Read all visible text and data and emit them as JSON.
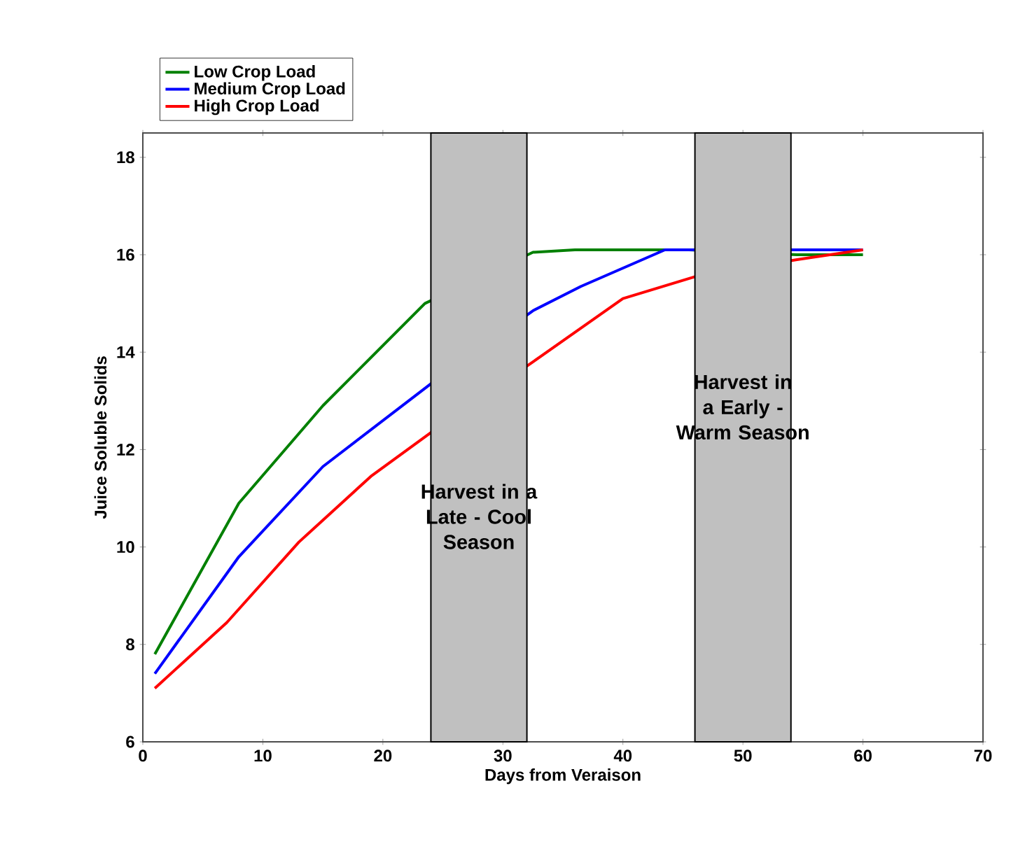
{
  "chart_data": {
    "type": "line",
    "xlabel": "Days from Veraison",
    "ylabel": "Juice Soluble Solids",
    "xlim": [
      0,
      70
    ],
    "xticks": [
      0,
      10,
      20,
      30,
      40,
      50,
      60,
      70
    ],
    "ylim": [
      6,
      18.5
    ],
    "yticks": [
      6,
      8,
      10,
      12,
      14,
      16,
      18
    ],
    "legend": "top left",
    "grid": false,
    "series": [
      {
        "name": "Low Crop Load",
        "color": "#008000",
        "x": [
          1,
          8,
          15,
          23.5,
          32.5,
          36,
          45.5,
          54.5,
          60
        ],
        "values": [
          7.8,
          10.9,
          12.9,
          15.0,
          16.05,
          16.1,
          16.1,
          16.0,
          16.0
        ]
      },
      {
        "name": "Medium Crop Load",
        "color": "#0000ff",
        "x": [
          1,
          8,
          15,
          24,
          32.5,
          36.5,
          43.5,
          60
        ],
        "values": [
          7.4,
          9.8,
          11.65,
          13.35,
          14.85,
          15.35,
          16.1,
          16.1
        ]
      },
      {
        "name": "High Crop Load",
        "color": "#ff0000",
        "x": [
          1,
          7,
          13,
          19,
          24,
          32.5,
          40,
          46,
          54.5,
          60
        ],
        "values": [
          7.1,
          8.45,
          10.1,
          11.45,
          12.35,
          13.8,
          15.1,
          15.55,
          15.9,
          16.1
        ]
      }
    ],
    "bands": [
      {
        "axis": "x",
        "from": 24,
        "to": 32,
        "label": "Harvest in a Late - Cool Season",
        "color": "#c0c0c0"
      },
      {
        "axis": "x",
        "from": 46,
        "to": 54,
        "label": "Harvest in a Early - Warm Season",
        "color": "#c0c0c0"
      }
    ]
  }
}
